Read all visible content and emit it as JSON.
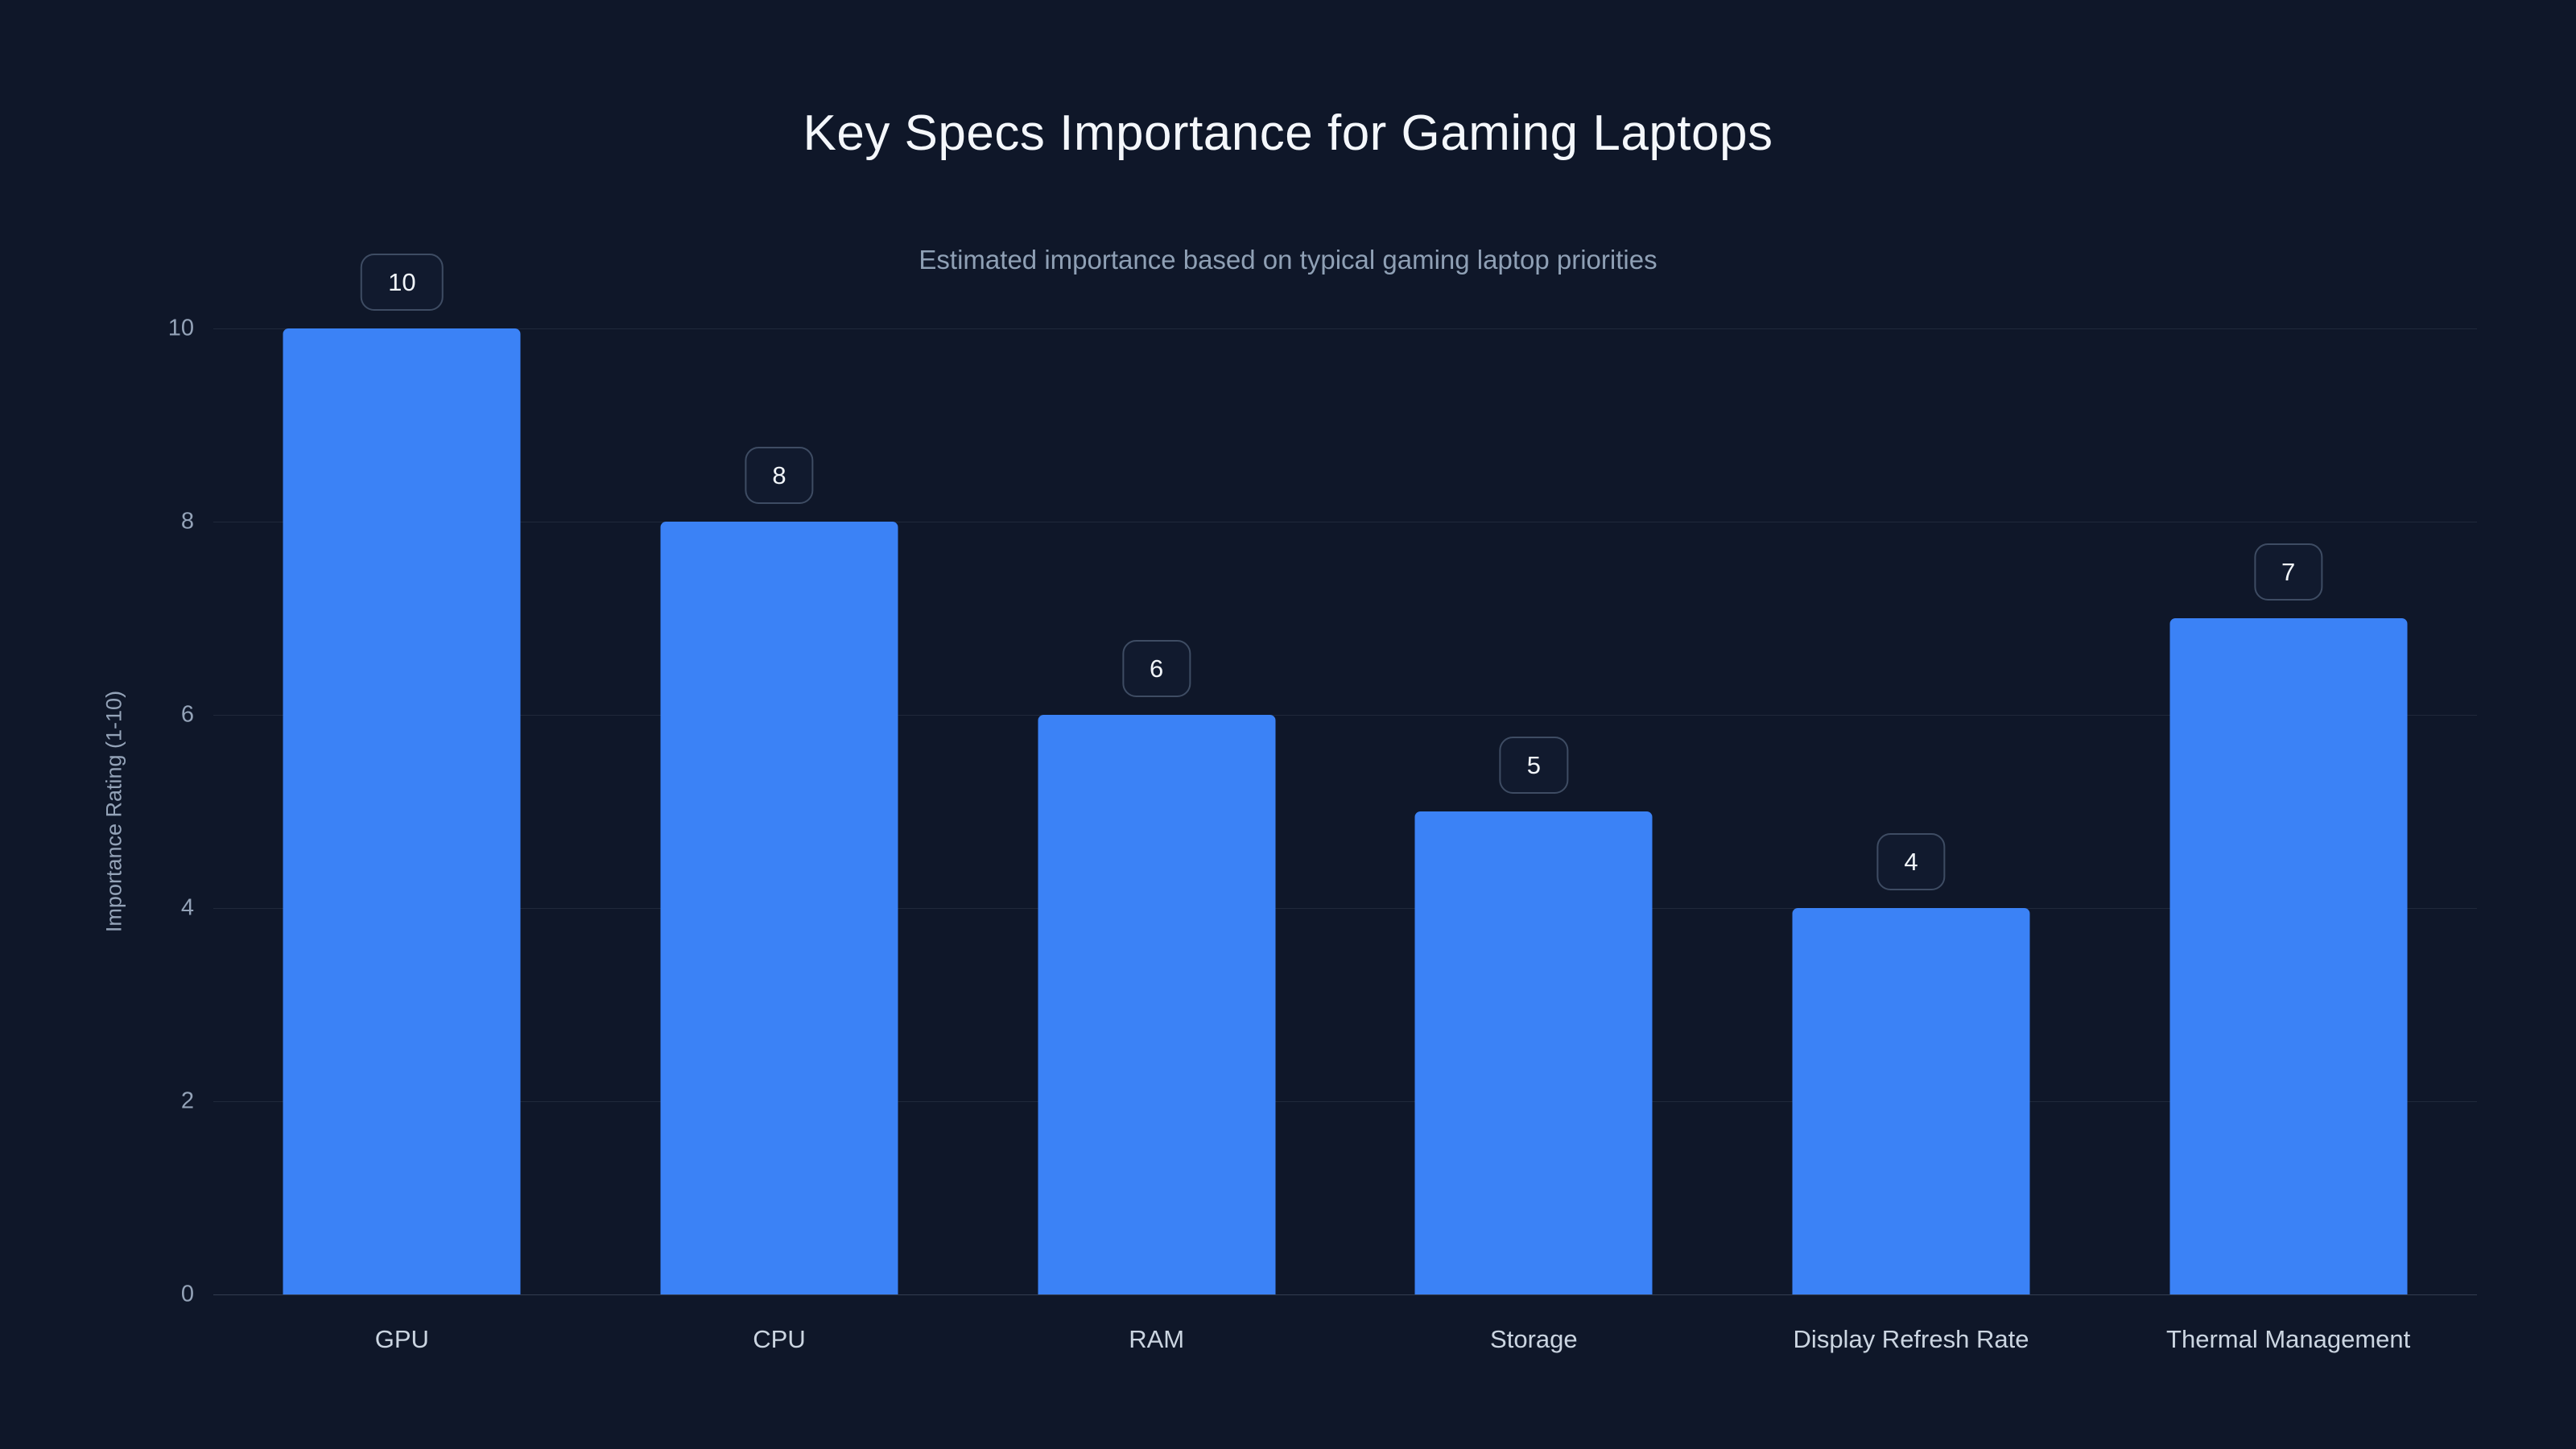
{
  "chart_data": {
    "type": "bar",
    "title": "Key Specs Importance for Gaming Laptops",
    "subtitle": "Estimated importance based on typical gaming laptop priorities",
    "ylabel": "Importance Rating (1-10)",
    "xlabel": "",
    "categories": [
      "GPU",
      "CPU",
      "RAM",
      "Storage",
      "Display Refresh Rate",
      "Thermal Management"
    ],
    "values": [
      10,
      8,
      6,
      5,
      4,
      7
    ],
    "ylim": [
      0,
      10
    ],
    "yticks": [
      0,
      2,
      4,
      6,
      8,
      10
    ],
    "grid": true,
    "legend": false,
    "data_labels": [
      "10",
      "8",
      "6",
      "5",
      "4",
      "7"
    ],
    "colors": {
      "background": "#0f1729",
      "bar": "#3b82f6",
      "gridline": "rgba(148,163,184,0.13)",
      "title_text": "#f4f7fb",
      "subtitle_text": "#8fa0b5",
      "axis_text": "#94a3b8",
      "category_text": "#cbd5e1",
      "badge_border": "#3e4c63",
      "badge_background": "#111a2e"
    }
  }
}
